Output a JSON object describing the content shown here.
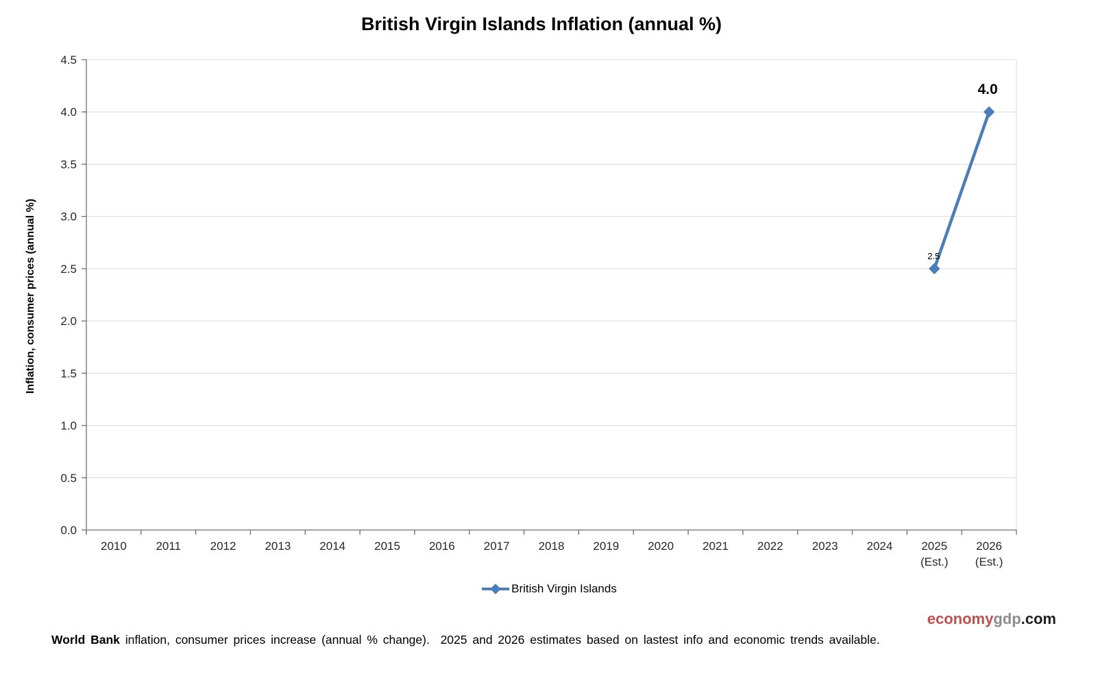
{
  "chart_data": {
    "type": "line",
    "title": "British Virgin Islands Inflation (annual %)",
    "ylabel": "Inflation, consumer prices (annual %)",
    "xlabel": "",
    "categories": [
      "2010",
      "2011",
      "2012",
      "2013",
      "2014",
      "2015",
      "2016",
      "2017",
      "2018",
      "2019",
      "2020",
      "2021",
      "2022",
      "2023",
      "2024",
      "2025\n(Est.)",
      "2026\n(Est.)"
    ],
    "series": [
      {
        "name": "British Virgin Islands",
        "color": "#4a7ebb",
        "values": [
          null,
          null,
          null,
          null,
          null,
          null,
          null,
          null,
          null,
          null,
          null,
          null,
          null,
          null,
          null,
          2.5,
          4.0
        ]
      }
    ],
    "points": [
      {
        "category": "2025 (Est.)",
        "value": 2.5,
        "label": "2.5",
        "label_style": "small"
      },
      {
        "category": "2026 (Est.)",
        "value": 4.0,
        "label": "4.0",
        "label_style": "large"
      }
    ],
    "ylim": [
      0,
      4.5
    ],
    "ytick_step": 0.5,
    "grid": "horizontal",
    "legend_position": "bottom",
    "colors": {
      "gridline": "#d9d9d9",
      "axis": "#6f6f6f",
      "plot_right_border": "#d9d9d9"
    }
  },
  "legend": {
    "label": "British Virgin Islands"
  },
  "watermark": {
    "part1": "economy",
    "part2": "gdp",
    "part3": ".com",
    "color1": "#c0504d",
    "color2": "#8c8c8c",
    "color3": "#1f1f1f"
  },
  "footnote": {
    "bold": "World Bank",
    "text": " inflation, consumer prices increase (annual % change).  2025 and 2026 estimates based on lastest info and economic trends available."
  }
}
